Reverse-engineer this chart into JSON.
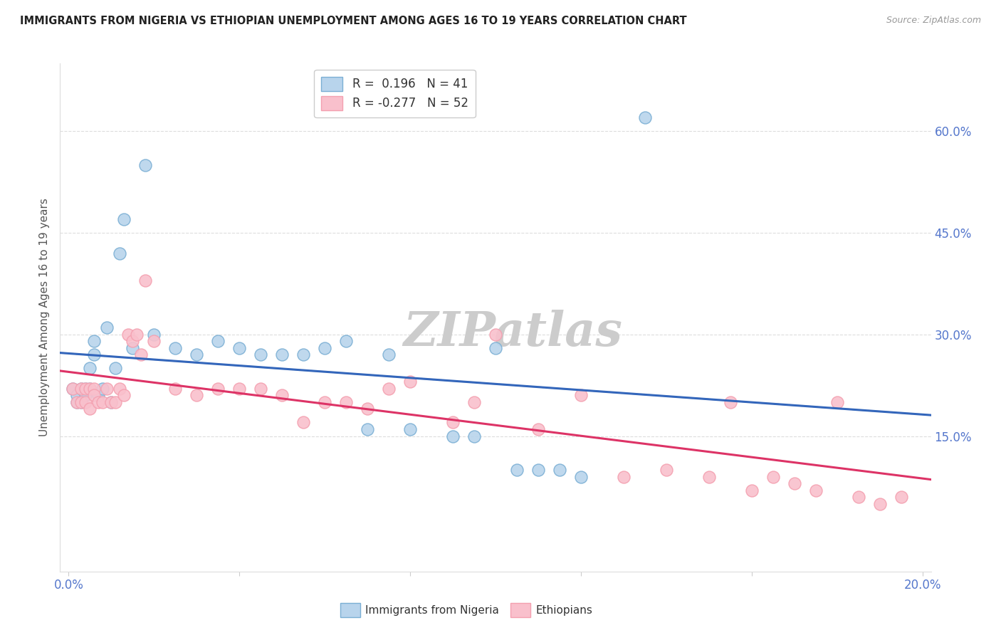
{
  "title": "IMMIGRANTS FROM NIGERIA VS ETHIOPIAN UNEMPLOYMENT AMONG AGES 16 TO 19 YEARS CORRELATION CHART",
  "source": "Source: ZipAtlas.com",
  "ylabel": "Unemployment Among Ages 16 to 19 years",
  "xlim": [
    -0.002,
    0.202
  ],
  "ylim": [
    -0.05,
    0.7
  ],
  "ytick_positions": [
    0.15,
    0.3,
    0.45,
    0.6
  ],
  "ytick_labels": [
    "15.0%",
    "30.0%",
    "45.0%",
    "60.0%"
  ],
  "xtick_positions": [
    0.0,
    0.04,
    0.08,
    0.12,
    0.16,
    0.2
  ],
  "xticklabel_left": "0.0%",
  "xticklabel_right": "20.0%",
  "legend_labels": [
    "Immigrants from Nigeria",
    "Ethiopians"
  ],
  "r_nigeria": 0.196,
  "n_nigeria": 41,
  "r_ethiopia": -0.277,
  "n_ethiopia": 52,
  "blue_color": "#7BAFD4",
  "pink_color": "#F4A0B0",
  "blue_fill": "#B8D4EC",
  "pink_fill": "#F9C0CC",
  "blue_line": "#3366BB",
  "pink_line": "#DD3366",
  "dashed_line_color": "#BBBBBB",
  "nigeria_x": [
    0.001,
    0.002,
    0.002,
    0.003,
    0.003,
    0.004,
    0.004,
    0.005,
    0.005,
    0.006,
    0.006,
    0.007,
    0.008,
    0.009,
    0.01,
    0.011,
    0.012,
    0.013,
    0.015,
    0.018,
    0.02,
    0.025,
    0.03,
    0.035,
    0.04,
    0.045,
    0.05,
    0.055,
    0.06,
    0.065,
    0.07,
    0.075,
    0.08,
    0.09,
    0.095,
    0.1,
    0.105,
    0.11,
    0.115,
    0.12,
    0.135
  ],
  "nigeria_y": [
    0.22,
    0.2,
    0.21,
    0.22,
    0.2,
    0.22,
    0.21,
    0.25,
    0.22,
    0.27,
    0.29,
    0.21,
    0.22,
    0.31,
    0.2,
    0.25,
    0.42,
    0.47,
    0.28,
    0.55,
    0.3,
    0.28,
    0.27,
    0.29,
    0.28,
    0.27,
    0.27,
    0.27,
    0.28,
    0.29,
    0.16,
    0.27,
    0.16,
    0.15,
    0.15,
    0.28,
    0.1,
    0.1,
    0.1,
    0.09,
    0.62
  ],
  "ethiopia_x": [
    0.001,
    0.002,
    0.003,
    0.003,
    0.004,
    0.004,
    0.005,
    0.005,
    0.006,
    0.006,
    0.007,
    0.008,
    0.009,
    0.01,
    0.011,
    0.012,
    0.013,
    0.014,
    0.015,
    0.016,
    0.017,
    0.018,
    0.02,
    0.025,
    0.03,
    0.035,
    0.04,
    0.045,
    0.05,
    0.055,
    0.06,
    0.065,
    0.07,
    0.075,
    0.08,
    0.09,
    0.095,
    0.1,
    0.11,
    0.12,
    0.13,
    0.14,
    0.15,
    0.155,
    0.16,
    0.165,
    0.17,
    0.175,
    0.18,
    0.185,
    0.19,
    0.195
  ],
  "ethiopia_y": [
    0.22,
    0.2,
    0.22,
    0.2,
    0.22,
    0.2,
    0.22,
    0.19,
    0.22,
    0.21,
    0.2,
    0.2,
    0.22,
    0.2,
    0.2,
    0.22,
    0.21,
    0.3,
    0.29,
    0.3,
    0.27,
    0.38,
    0.29,
    0.22,
    0.21,
    0.22,
    0.22,
    0.22,
    0.21,
    0.17,
    0.2,
    0.2,
    0.19,
    0.22,
    0.23,
    0.17,
    0.2,
    0.3,
    0.16,
    0.21,
    0.09,
    0.1,
    0.09,
    0.2,
    0.07,
    0.09,
    0.08,
    0.07,
    0.2,
    0.06,
    0.05,
    0.06
  ],
  "background_color": "#FFFFFF",
  "grid_color": "#DDDDDD",
  "watermark_color": "#CCCCCC",
  "tick_color": "#5577CC"
}
